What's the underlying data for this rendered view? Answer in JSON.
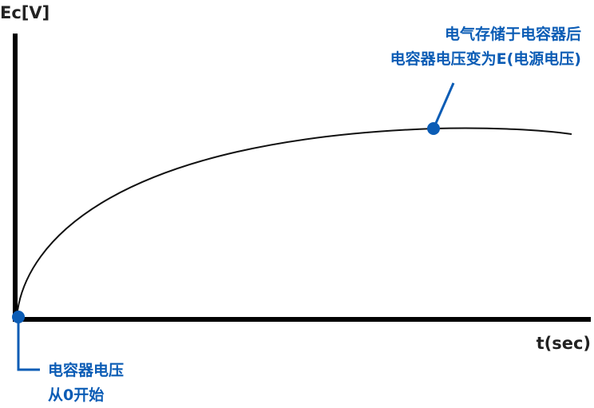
{
  "y_axis_label": "Ec[V]",
  "x_axis_label": "t(sec)",
  "annotations": {
    "start": {
      "lines": [
        "电容器电压",
        "从0开始"
      ]
    },
    "end": {
      "lines": [
        "电气存储于电容器后",
        "电容器电压变为E(电源电压)"
      ]
    }
  },
  "colors": {
    "axis": "#000000",
    "curve": "#111111",
    "accent": "#0b5cb5"
  }
}
